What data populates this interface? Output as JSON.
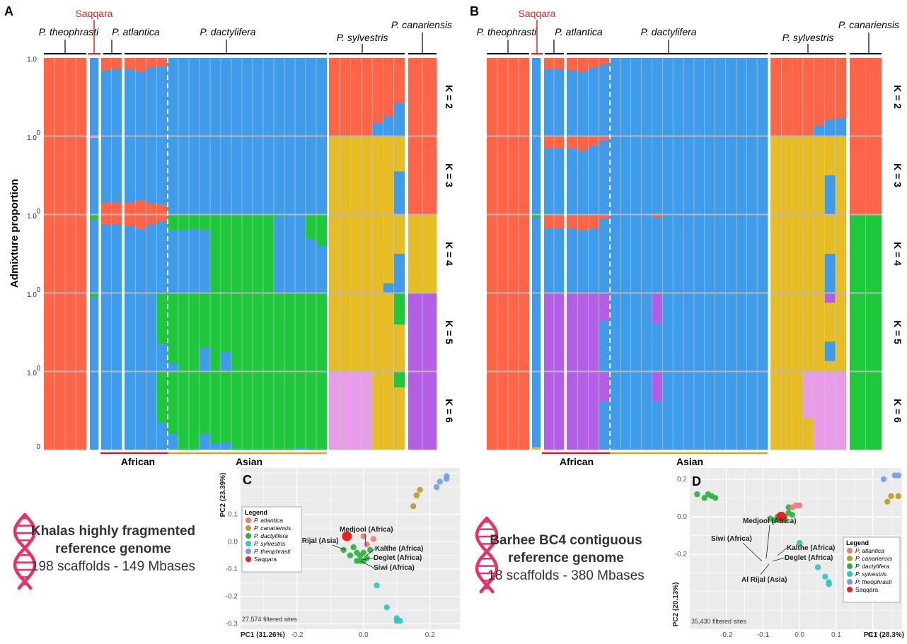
{
  "colors": {
    "red": "#fe6446",
    "blue": "#3e9cea",
    "yellow": "#e7bd26",
    "green": "#1dc83a",
    "purple": "#b45ee8",
    "pink": "#e69ce6",
    "grid_sep": "#b8b8b8",
    "african_line": "#d01c3a",
    "asian_line": "#e0a020",
    "pca_bg": "#ebebeb",
    "saqqara": "#e8231f",
    "dna": "#e8306a"
  },
  "labels": {
    "panel_a": "A",
    "panel_b": "B",
    "panel_c": "C",
    "panel_d": "D",
    "saqqara": "Saqqara",
    "ylabel": "Admixture proportion",
    "african": "African",
    "asian": "Asian",
    "tick_one": "1.0",
    "tick_zero": "0",
    "k_labels": [
      "K = 2",
      "K = 3",
      "K = 4",
      "K = 5",
      "K = 6"
    ],
    "species": {
      "theophrasti": "P. theophrasti",
      "atlantica": "P. atlantica",
      "dactylifera": "P. dactylifera",
      "sylvestris": "P. sylvestris",
      "canariensis": "P. canariensis"
    }
  },
  "references": {
    "left": {
      "line1": "Khalas highly fragmented",
      "line2": "reference genome",
      "line3": "198 scaffolds - 149 Mbases"
    },
    "right": {
      "line1": "Barhee BC4 contiguous",
      "line2": "reference genome",
      "line3": "18 scaffolds - 380 Mbases"
    }
  },
  "chart_data": [
    {
      "panel": "A",
      "type": "bar",
      "subtype": "stacked admixture (STRUCTURE)",
      "ylabel": "Admixture proportion",
      "groups": [
        "P. theophrasti",
        "Saqqara",
        "P. atlantica",
        "P. dactylifera",
        "P. sylvestris",
        "P. canariensis"
      ],
      "region_labels": [
        "African",
        "Asian"
      ],
      "k_values": [
        2,
        3,
        4,
        5,
        6
      ],
      "ylim": [
        0,
        1
      ]
    },
    {
      "panel": "B",
      "type": "bar",
      "subtype": "stacked admixture (STRUCTURE)",
      "groups": [
        "P. theophrasti",
        "Saqqara",
        "P. atlantica",
        "P. dactylifera",
        "P. sylvestris",
        "P. canariensis"
      ],
      "region_labels": [
        "African",
        "Asian"
      ],
      "k_values": [
        2,
        3,
        4,
        5,
        6
      ],
      "ylim": [
        0,
        1
      ]
    },
    {
      "panel": "C",
      "type": "scatter",
      "xlabel": "PC1 (31.26%)",
      "ylabel": "PC2 (23.39%)",
      "xlim": [
        -0.37,
        0.29
      ],
      "ylim": [
        -0.32,
        0.27
      ],
      "xticks": [
        -0.2,
        0.0,
        0.2
      ],
      "xtick_labels": [
        "-0.2",
        "0.0",
        "0.2"
      ],
      "yticks": [
        0.1,
        0.0,
        -0.1,
        -0.2,
        -0.3
      ],
      "ytick_labels": [
        "0.1",
        "0.0",
        "-0.1",
        "-0.2",
        "-0.3"
      ],
      "note": "27,574 filtered sites",
      "legend_title": "Legend",
      "legend": [
        {
          "name": "P. atlantica",
          "color": "#f07a72"
        },
        {
          "name": "P. canariensis",
          "color": "#b89a26"
        },
        {
          "name": "P. dactylifera",
          "color": "#26b23c"
        },
        {
          "name": "P. sylvestris",
          "color": "#28c8c0"
        },
        {
          "name": "P. theophrasti",
          "color": "#6f9ef0"
        },
        {
          "name": "Saqqara",
          "color": "#e8231f"
        }
      ],
      "annotations": [
        "Medjool (Africa)",
        "Al Rijal (Asia)",
        "Kalthe (Africa)",
        "Deglet (Africa)",
        "Siwi (Africa)"
      ],
      "points": {
        "atlantica": [
          [
            0.0,
            0.02
          ],
          [
            0.03,
            0.01
          ],
          [
            0.01,
            -0.01
          ]
        ],
        "canariensis": [
          [
            0.17,
            0.19
          ],
          [
            0.16,
            0.17
          ],
          [
            0.15,
            0.13
          ]
        ],
        "dactylifera": [
          [
            -0.35,
            0.11
          ],
          [
            -0.33,
            0.105
          ],
          [
            -0.32,
            0.1
          ],
          [
            -0.31,
            0.105
          ],
          [
            -0.29,
            0.1
          ],
          [
            -0.03,
            -0.02
          ],
          [
            -0.02,
            -0.04
          ],
          [
            -0.01,
            -0.05
          ],
          [
            0.0,
            -0.04
          ],
          [
            0.01,
            -0.06
          ],
          [
            -0.02,
            -0.07
          ],
          [
            -0.01,
            -0.07
          ],
          [
            -0.04,
            -0.05
          ],
          [
            0.02,
            -0.03
          ],
          [
            0.0,
            -0.07
          ],
          [
            -0.06,
            -0.03
          ]
        ],
        "sylvestris": [
          [
            0.04,
            -0.16
          ],
          [
            0.07,
            -0.24
          ],
          [
            0.1,
            -0.28
          ],
          [
            0.11,
            -0.29
          ],
          [
            0.1,
            -0.29
          ]
        ],
        "theophrasti": [
          [
            0.22,
            0.2
          ],
          [
            0.23,
            0.22
          ],
          [
            0.25,
            0.24
          ],
          [
            0.25,
            0.23
          ]
        ],
        "saqqara": [
          [
            -0.05,
            0.02
          ]
        ]
      }
    },
    {
      "panel": "D",
      "type": "scatter",
      "xlabel": "PC1 (28.3%)",
      "ylabel": "PC2 (20.13%)",
      "xlim": [
        -0.3,
        0.28
      ],
      "ylim": [
        -0.6,
        0.26
      ],
      "xticks": [
        -0.2,
        -0.1,
        0.0,
        0.1,
        0.2
      ],
      "xtick_labels": [
        "-0.2",
        "-0.1",
        "0.0",
        "0.1",
        "0.2"
      ],
      "yticks": [
        0.2,
        0.0,
        -0.2
      ],
      "ytick_labels": [
        "0.2",
        "0.0",
        "-0.2"
      ],
      "note": "35,430 filtered sites",
      "legend_title": "Legend",
      "legend": [
        {
          "name": "P. atlantica",
          "color": "#f07a72"
        },
        {
          "name": "P. canariensis",
          "color": "#b89a26"
        },
        {
          "name": "P. dactylifera",
          "color": "#26b23c"
        },
        {
          "name": "P. sylvestris",
          "color": "#28c8c0"
        },
        {
          "name": "P. theophrasti",
          "color": "#6f9ef0"
        },
        {
          "name": "Saqqara",
          "color": "#e8231f"
        }
      ],
      "annotations": [
        "Medjool (Africa)",
        "Siwi (Africa)",
        "Kalthe (Africa)",
        "Deglet (Africa)",
        "Al Rijal (Asia)"
      ],
      "points": {
        "atlantica": [
          [
            -0.01,
            0.06
          ],
          [
            0.0,
            0.06
          ],
          [
            -0.02,
            0.05
          ]
        ],
        "canariensis": [
          [
            0.25,
            0.11
          ],
          [
            0.27,
            0.11
          ],
          [
            0.24,
            0.08
          ]
        ],
        "dactylifera": [
          [
            -0.28,
            0.12
          ],
          [
            -0.26,
            0.1
          ],
          [
            -0.25,
            0.12
          ],
          [
            -0.24,
            0.11
          ],
          [
            -0.23,
            0.1
          ],
          [
            -0.03,
            0.02
          ],
          [
            -0.04,
            0.0
          ],
          [
            -0.06,
            -0.01
          ],
          [
            -0.07,
            -0.02
          ],
          [
            -0.08,
            -0.01
          ],
          [
            -0.05,
            -0.02
          ],
          [
            -0.04,
            -0.02
          ],
          [
            -0.02,
            0.01
          ],
          [
            -0.03,
            0.05
          ],
          [
            -0.06,
            0.0
          ]
        ],
        "sylvestris": [
          [
            0.0,
            -0.14
          ],
          [
            0.05,
            -0.27
          ],
          [
            0.07,
            -0.32
          ],
          [
            0.08,
            -0.35
          ],
          [
            0.08,
            -0.36
          ]
        ],
        "theophrasti": [
          [
            0.23,
            0.2
          ],
          [
            0.26,
            0.22
          ],
          [
            0.27,
            0.22
          ]
        ],
        "saqqara": [
          [
            -0.05,
            0.0
          ]
        ]
      }
    }
  ]
}
